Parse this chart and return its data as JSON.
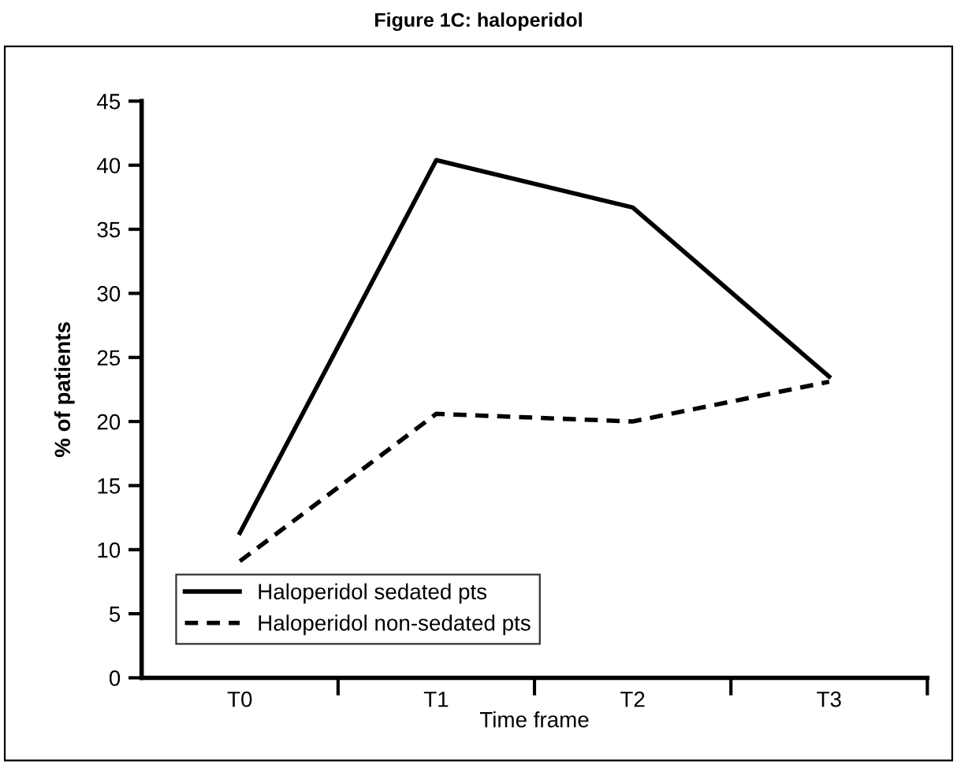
{
  "chart_data": {
    "type": "line",
    "title": "Figure 1C: haloperidol",
    "xlabel": "Time frame",
    "ylabel": "% of patients",
    "categories": [
      "T0",
      "T1",
      "T2",
      "T3"
    ],
    "series": [
      {
        "name": "Haloperidol sedated pts",
        "color": "#000000",
        "line_style": "solid",
        "values": [
          11.3,
          40.4,
          36.7,
          23.5
        ]
      },
      {
        "name": "Haloperidol non-sedated pts",
        "color": "#000000",
        "line_style": "dashed",
        "values": [
          9.1,
          20.6,
          20.0,
          23.1
        ]
      }
    ],
    "ylim": [
      0,
      45
    ],
    "yticks": [
      0,
      5,
      10,
      15,
      20,
      25,
      30,
      35,
      40,
      45
    ],
    "grid": false,
    "legend": "bottom left",
    "marker": "none"
  }
}
